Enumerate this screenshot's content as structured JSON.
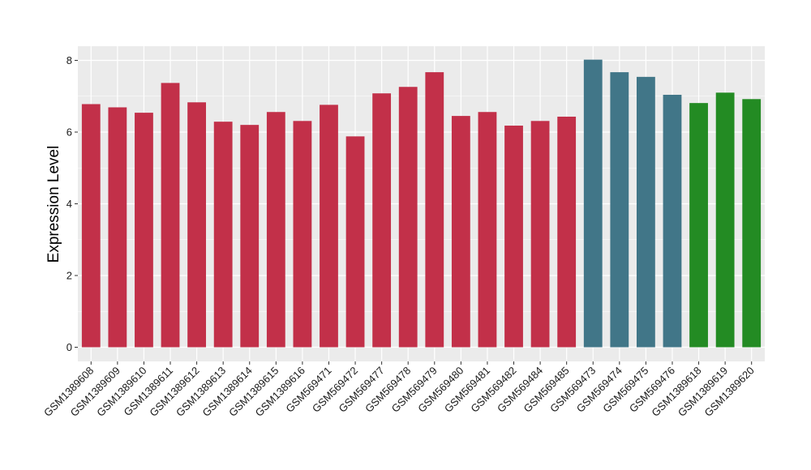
{
  "chart_data": {
    "type": "bar",
    "title": "",
    "xlabel": "",
    "ylabel": "Expression Level",
    "ylim": [
      0,
      8.4
    ],
    "yticks": [
      0,
      2,
      4,
      6,
      8
    ],
    "grid": true,
    "legend": "none",
    "categories": [
      "GSM1389608",
      "GSM1389609",
      "GSM1389610",
      "GSM1389611",
      "GSM1389612",
      "GSM1389613",
      "GSM1389614",
      "GSM1389615",
      "GSM1389616",
      "GSM569471",
      "GSM569472",
      "GSM569477",
      "GSM569478",
      "GSM569479",
      "GSM569480",
      "GSM569481",
      "GSM569482",
      "GSM569484",
      "GSM569485",
      "GSM569473",
      "GSM569474",
      "GSM569475",
      "GSM569476",
      "GSM1389618",
      "GSM1389619",
      "GSM1389620"
    ],
    "values": [
      6.78,
      6.69,
      6.54,
      7.37,
      6.83,
      6.29,
      6.2,
      6.56,
      6.31,
      6.76,
      5.88,
      7.08,
      7.26,
      7.67,
      6.45,
      6.56,
      6.18,
      6.31,
      6.43,
      8.02,
      7.67,
      7.54,
      7.04,
      6.81,
      7.1,
      6.92
    ],
    "group_of_bar": [
      0,
      0,
      0,
      0,
      0,
      0,
      0,
      0,
      0,
      0,
      0,
      0,
      0,
      0,
      0,
      0,
      0,
      0,
      0,
      1,
      1,
      1,
      1,
      2,
      2,
      2
    ],
    "group_colors": [
      "#c23049",
      "#417688",
      "#238b23"
    ],
    "panel_color": "#ebebeb",
    "grid_color": "#ffffff"
  }
}
